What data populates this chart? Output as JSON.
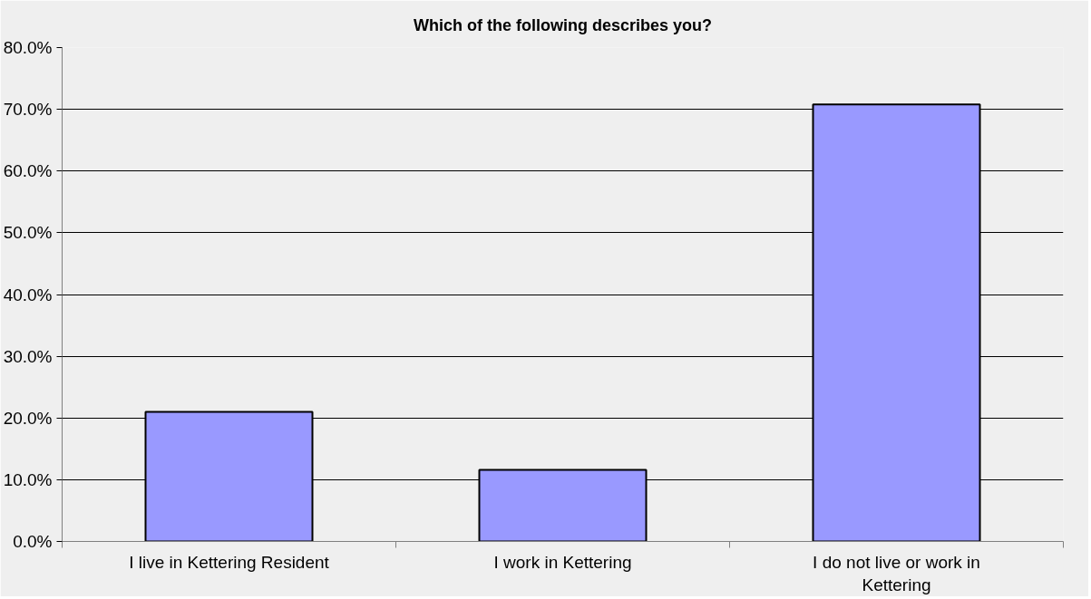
{
  "chart_data": {
    "type": "bar",
    "title": "Which of the following describes you?",
    "categories": [
      "I live in Kettering Resident",
      "I work in Kettering",
      "I do not live or work in Kettering"
    ],
    "values": [
      21.0,
      11.6,
      70.8
    ],
    "color": "#9999ff",
    "ylim": [
      0,
      80
    ],
    "yticks": [
      {
        "value": 0,
        "label": "0.0%"
      },
      {
        "value": 10,
        "label": "10.0%"
      },
      {
        "value": 20,
        "label": "20.0%"
      },
      {
        "value": 30,
        "label": "30.0%"
      },
      {
        "value": 40,
        "label": "40.0%"
      },
      {
        "value": 50,
        "label": "50.0%"
      },
      {
        "value": 60,
        "label": "60.0%"
      },
      {
        "value": 70,
        "label": "70.0%"
      },
      {
        "value": 80,
        "label": "80.0%"
      }
    ],
    "grid": "y"
  }
}
